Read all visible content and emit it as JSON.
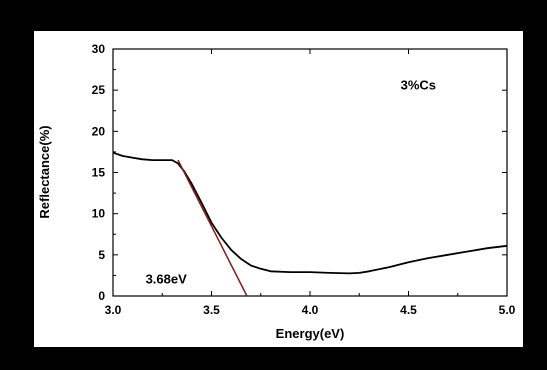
{
  "chart_data": {
    "type": "line",
    "title": "",
    "xlabel": "Energy(eV)",
    "ylabel": "Reflectance(%)",
    "xlim": [
      3.0,
      5.0
    ],
    "ylim": [
      0,
      30
    ],
    "xticks": [
      "3.0",
      "3.5",
      "4.0",
      "4.5",
      "5.0"
    ],
    "yticks": [
      "0",
      "5",
      "10",
      "15",
      "20",
      "25",
      "30"
    ],
    "grid": false,
    "series": [
      {
        "color": "#000000",
        "x": [
          3.0,
          3.05,
          3.1,
          3.15,
          3.2,
          3.25,
          3.3,
          3.33,
          3.36,
          3.4,
          3.45,
          3.5,
          3.55,
          3.6,
          3.65,
          3.7,
          3.75,
          3.8,
          3.9,
          4.0,
          4.1,
          4.2,
          4.25,
          4.3,
          4.4,
          4.5,
          4.6,
          4.7,
          4.8,
          4.9,
          5.0
        ],
        "values": [
          17.4,
          17.0,
          16.8,
          16.6,
          16.5,
          16.5,
          16.5,
          16.1,
          15.2,
          13.6,
          11.3,
          8.9,
          7.1,
          5.6,
          4.5,
          3.7,
          3.3,
          3.0,
          2.9,
          2.9,
          2.8,
          2.75,
          2.8,
          3.0,
          3.5,
          4.1,
          4.6,
          5.0,
          5.4,
          5.8,
          6.1
        ]
      }
    ],
    "tangent_line": {
      "color": "#8b1a1a",
      "x": [
        3.33,
        3.68
      ],
      "values": [
        16.5,
        0
      ]
    },
    "annotations": [
      {
        "text": "3%Cs",
        "x": 4.55,
        "y": 25.1
      },
      {
        "text": "3.68eV",
        "x": 3.27,
        "y": 1.5
      }
    ]
  }
}
